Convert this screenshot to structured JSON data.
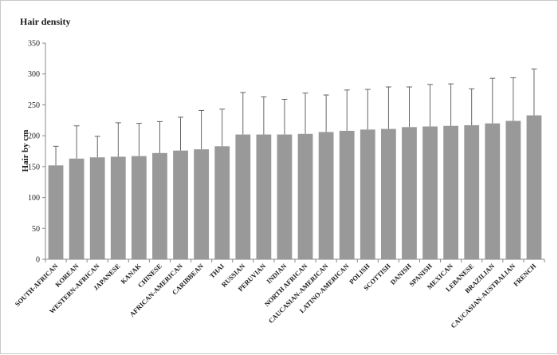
{
  "chart_data": {
    "type": "bar",
    "title": "Hair density",
    "xlabel": "",
    "ylabel": "Hair by cm",
    "ylim": [
      0,
      350
    ],
    "yticks": [
      0,
      50,
      100,
      150,
      200,
      250,
      300,
      350
    ],
    "grid": false,
    "colors": {
      "bar": "#999999",
      "errorbar": "#555555",
      "axis": "#888888"
    },
    "categories": [
      "SOUTH-AFRICAN",
      "KOREAN",
      "WESTERN-AFRICAN",
      "JAPANESE",
      "KANAK",
      "CHINESE",
      "AFRICAN-AMERICAN",
      "CARIBBEAN",
      "THAI",
      "RUSSIAN",
      "PERUVIAN",
      "INDIAN",
      "NORTH AFRICAN",
      "CAUCASIAN-AMERICAN",
      "LATINO-AMERICAN",
      "POLISH",
      "SCOTTISH",
      "DANISH",
      "SPANISH",
      "MEXICAN",
      "LEBANESE",
      "BRAZILIAN",
      "CAUCASIAN-AUSTRALIAN",
      "FRENCH"
    ],
    "values": [
      152,
      163,
      165,
      166,
      167,
      172,
      176,
      178,
      183,
      202,
      202,
      202,
      203,
      206,
      208,
      210,
      211,
      214,
      215,
      216,
      217,
      220,
      224,
      233
    ],
    "error_upper": [
      183,
      216,
      199,
      221,
      220,
      223,
      230,
      241,
      243,
      270,
      263,
      259,
      269,
      266,
      274,
      275,
      279,
      279,
      283,
      284,
      276,
      293,
      294,
      308
    ]
  }
}
